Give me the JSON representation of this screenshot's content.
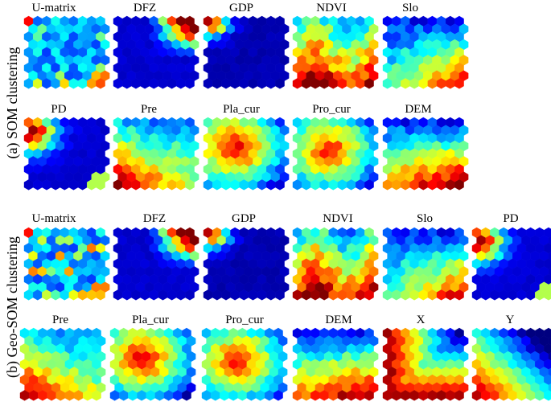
{
  "sections": [
    {
      "label": "(a) SOM clustering",
      "panels": [
        {
          "title": "U-matrix",
          "pattern": "umatrix",
          "seed": 11
        },
        {
          "title": "DFZ",
          "pattern": "dfz",
          "seed": 12
        },
        {
          "title": "GDP",
          "pattern": "gdp",
          "seed": 13
        },
        {
          "title": "NDVI",
          "pattern": "ndvi",
          "seed": 14
        },
        {
          "title": "Slo",
          "pattern": "slo",
          "seed": 15
        },
        {
          "title": "PD",
          "pattern": "pd",
          "seed": 16
        },
        {
          "title": "Pre",
          "pattern": "pre",
          "seed": 17
        },
        {
          "title": "Pla_cur",
          "pattern": "placur",
          "seed": 18
        },
        {
          "title": "Pro_cur",
          "pattern": "procur",
          "seed": 19
        },
        {
          "title": "DEM",
          "pattern": "dem",
          "seed": 20
        }
      ]
    },
    {
      "label": "(b) Geo-SOM clustering",
      "panels": [
        {
          "title": "U-matrix",
          "pattern": "umatrix",
          "seed": 31
        },
        {
          "title": "DFZ",
          "pattern": "dfz",
          "seed": 32
        },
        {
          "title": "GDP",
          "pattern": "gdp",
          "seed": 33
        },
        {
          "title": "NDVI",
          "pattern": "ndvi",
          "seed": 34
        },
        {
          "title": "Slo",
          "pattern": "slo",
          "seed": 35
        },
        {
          "title": "PD",
          "pattern": "pd",
          "seed": 36
        },
        {
          "title": "Pre",
          "pattern": "pre",
          "seed": 37
        },
        {
          "title": "Pla_cur",
          "pattern": "placur",
          "seed": 38
        },
        {
          "title": "Pro_cur",
          "pattern": "procur",
          "seed": 39
        },
        {
          "title": "DEM",
          "pattern": "dem",
          "seed": 40
        },
        {
          "title": "X",
          "pattern": "x",
          "seed": 41
        },
        {
          "title": "Y",
          "pattern": "y",
          "seed": 42
        }
      ]
    }
  ],
  "grid": {
    "cols": 9,
    "rows": 9
  },
  "colormap": "jet"
}
